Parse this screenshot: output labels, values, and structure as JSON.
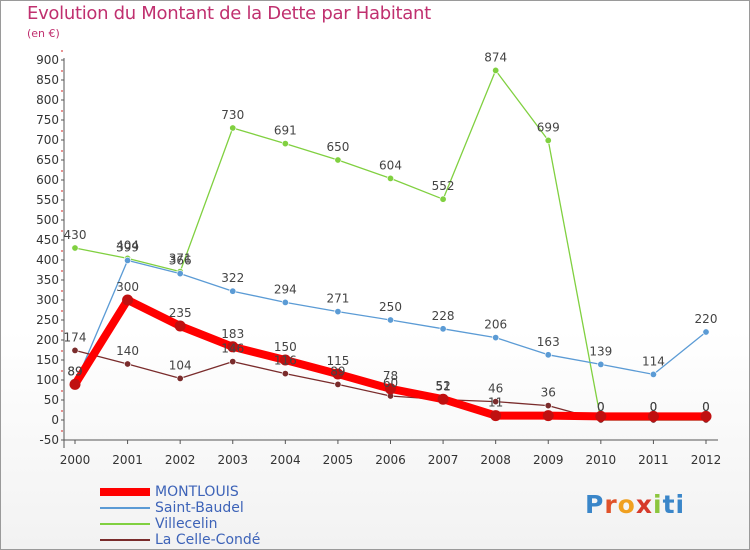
{
  "header": {
    "title": "Evolution du Montant de la Dette par Habitant",
    "subtitle": "(en €)"
  },
  "logo": {
    "text": "Proxiti",
    "letters": [
      "P",
      "r",
      "o",
      "x",
      "i",
      "ti"
    ]
  },
  "chart_data": {
    "type": "line",
    "title": "Evolution du Montant de la Dette par Habitant",
    "ylabel": "(en €)",
    "xlabel": "",
    "ylim": [
      -50,
      900
    ],
    "yticks": [
      -50,
      0,
      50,
      100,
      150,
      200,
      250,
      300,
      350,
      400,
      450,
      500,
      550,
      600,
      650,
      700,
      750,
      800,
      850,
      900
    ],
    "x": [
      2000,
      2001,
      2002,
      2003,
      2004,
      2005,
      2006,
      2007,
      2008,
      2009,
      2010,
      2011,
      2012
    ],
    "grid": false,
    "legend_position": "bottom-left",
    "series": [
      {
        "name": "MONTLOUIS",
        "color": "#ff0000",
        "values": [
          89,
          300,
          235,
          183,
          150,
          115,
          78,
          52,
          11,
          11,
          9,
          9,
          9
        ],
        "labels": [
          "89",
          "300",
          "235",
          "183",
          "150",
          "115",
          "78",
          "52",
          "11",
          "",
          "",
          "",
          ""
        ]
      },
      {
        "name": "Saint-Baudel",
        "color": "#5b9bd5",
        "values": [
          89,
          399,
          366,
          322,
          294,
          271,
          250,
          228,
          206,
          163,
          139,
          114,
          220
        ],
        "labels": [
          "89",
          "399",
          "366",
          "322",
          "294",
          "271",
          "250",
          "228",
          "206",
          "163",
          "139",
          "114",
          "220"
        ]
      },
      {
        "name": "Villecelin",
        "color": "#80d040",
        "values": [
          430,
          404,
          371,
          730,
          691,
          650,
          604,
          552,
          874,
          699,
          0,
          0,
          0
        ],
        "labels": [
          "430",
          "404",
          "371",
          "730",
          "691",
          "650",
          "604",
          "552",
          "874",
          "699",
          "0",
          "0",
          "0"
        ]
      },
      {
        "name": "La Celle-Condé",
        "color": "#7a2c2c",
        "values": [
          174,
          140,
          104,
          146,
          116,
          89,
          60,
          51,
          46,
          36,
          0,
          0,
          0
        ],
        "labels": [
          "174",
          "140",
          "104",
          "146",
          "116",
          "89",
          "60",
          "51",
          "46",
          "36",
          "0",
          "0",
          "0"
        ]
      }
    ]
  }
}
